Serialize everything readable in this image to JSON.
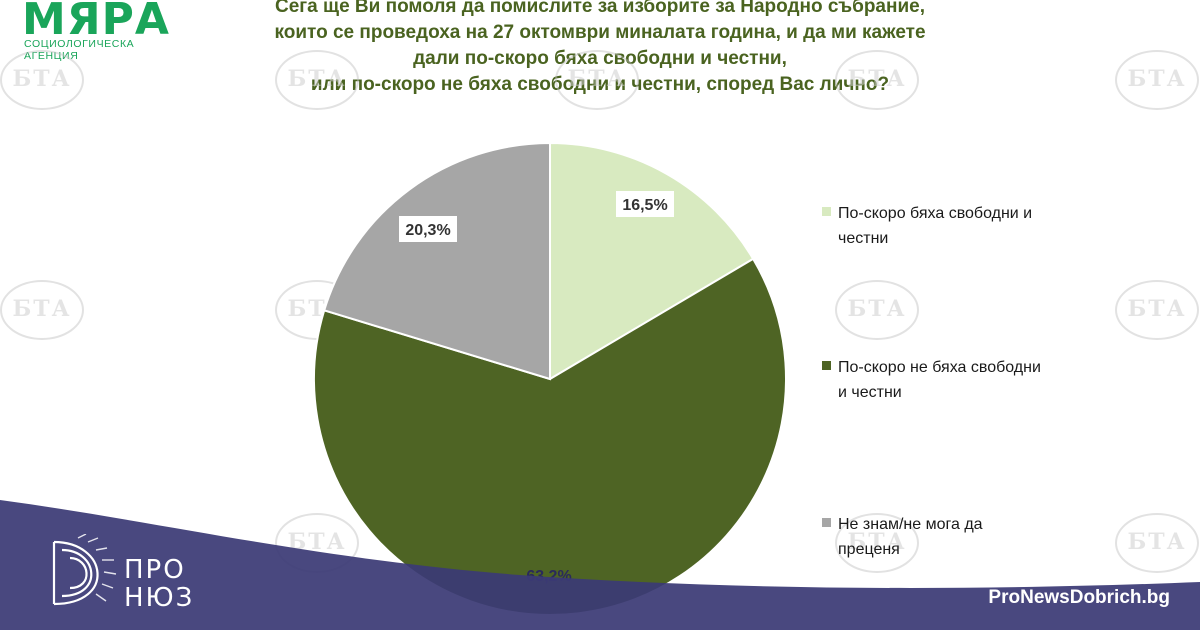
{
  "logo": {
    "word": "МЯРА",
    "subtitle": "СОЦИОЛОГИЧЕСКА АГЕНЦИЯ",
    "color": "#1aa55a"
  },
  "watermark": {
    "text": "БТА"
  },
  "footer": {
    "brand_top": "ПРО",
    "brand_bottom": "НЮЗ",
    "site": "ProNewsDobrich.bg",
    "band_color": "#3b3a75"
  },
  "chart_data": {
    "type": "pie",
    "title_lines": [
      "Сега ще Ви помоля да помислите за изборите за Народно събрание,",
      "които се проведоха на 27 октомври миналата година, и да ми кажете",
      "дали по-скоро бяха свободни и честни,",
      "или по-скоро не бяха свободни и честни, според Вас лично?"
    ],
    "slices": [
      {
        "label_lines": [
          "По-скоро бяха свободни и",
          "честни"
        ],
        "value": 16.5,
        "value_label": "16,5%",
        "color": "#d8eac0"
      },
      {
        "label_lines": [
          "По-скоро не бяха свободни",
          "и честни"
        ],
        "value": 63.2,
        "value_label": "63,2%",
        "color": "#4e6424"
      },
      {
        "label_lines": [
          "Не знам/не мога да",
          "преценя"
        ],
        "value": 20.3,
        "value_label": "20,3%",
        "color": "#a6a6a6"
      }
    ],
    "legend_position": "right"
  }
}
